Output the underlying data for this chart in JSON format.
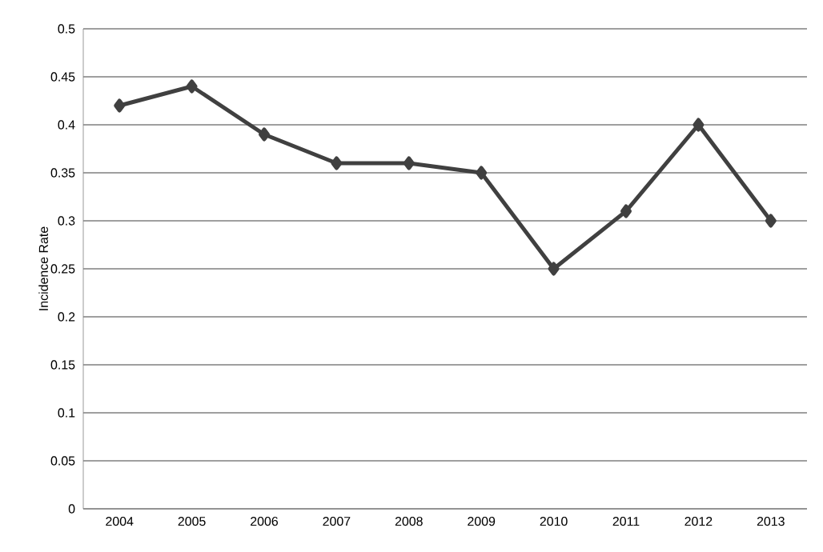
{
  "chart_data": {
    "type": "line",
    "ylabel": "Incidence Rate",
    "categories": [
      "2004",
      "2005",
      "2006",
      "2007",
      "2008",
      "2009",
      "2010",
      "2011",
      "2012",
      "2013"
    ],
    "values": [
      0.42,
      0.44,
      0.39,
      0.36,
      0.36,
      0.35,
      0.25,
      0.31,
      0.4,
      0.3
    ],
    "color": "#404040",
    "marker": "diamond",
    "line_style": "solid",
    "ylim": [
      0,
      0.5
    ],
    "yticks": [
      0,
      0.05,
      0.1,
      0.15,
      0.2,
      0.25,
      0.3,
      0.35,
      0.4,
      0.45,
      0.5
    ],
    "grid": "y"
  }
}
